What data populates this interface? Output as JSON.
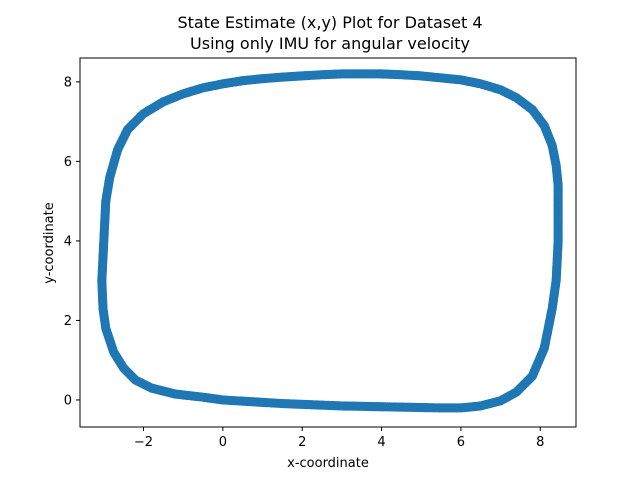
{
  "chart_data": {
    "type": "scatter",
    "title_line1": "State Estimate (x,y) Plot for Dataset 4",
    "title_line2": "Using only IMU for angular velocity",
    "xlabel": "x-coordinate",
    "ylabel": "y-coordinate",
    "xlim": [
      -3.6,
      8.9
    ],
    "ylim": [
      -0.68,
      8.6
    ],
    "xticks": [
      -2,
      0,
      2,
      4,
      6,
      8
    ],
    "xtick_labels": [
      "−2",
      "0",
      "2",
      "4",
      "6",
      "8"
    ],
    "yticks": [
      0,
      2,
      4,
      6,
      8
    ],
    "ytick_labels": [
      "0",
      "2",
      "4",
      "6",
      "8"
    ],
    "grid": false,
    "color": "#1f77b4",
    "points": [
      [
        8.45,
        4.0
      ],
      [
        8.45,
        5.4
      ],
      [
        8.4,
        5.9
      ],
      [
        8.3,
        6.4
      ],
      [
        8.1,
        6.9
      ],
      [
        7.8,
        7.3
      ],
      [
        7.4,
        7.6
      ],
      [
        7.0,
        7.8
      ],
      [
        6.5,
        7.95
      ],
      [
        6.0,
        8.05
      ],
      [
        5.5,
        8.1
      ],
      [
        5.0,
        8.15
      ],
      [
        4.5,
        8.18
      ],
      [
        4.0,
        8.2
      ],
      [
        3.5,
        8.2
      ],
      [
        3.0,
        8.2
      ],
      [
        2.5,
        8.18
      ],
      [
        2.0,
        8.15
      ],
      [
        1.5,
        8.12
      ],
      [
        1.0,
        8.08
      ],
      [
        0.5,
        8.03
      ],
      [
        0.0,
        7.95
      ],
      [
        -0.5,
        7.85
      ],
      [
        -1.0,
        7.7
      ],
      [
        -1.5,
        7.5
      ],
      [
        -2.0,
        7.2
      ],
      [
        -2.4,
        6.8
      ],
      [
        -2.65,
        6.3
      ],
      [
        -2.85,
        5.6
      ],
      [
        -2.95,
        5.0
      ],
      [
        -3.0,
        4.0
      ],
      [
        -3.05,
        3.0
      ],
      [
        -3.02,
        2.3
      ],
      [
        -2.95,
        1.8
      ],
      [
        -2.75,
        1.2
      ],
      [
        -2.5,
        0.8
      ],
      [
        -2.2,
        0.5
      ],
      [
        -1.8,
        0.3
      ],
      [
        -1.2,
        0.15
      ],
      [
        -0.5,
        0.07
      ],
      [
        0.0,
        0.0
      ],
      [
        0.5,
        -0.03
      ],
      [
        1.0,
        -0.06
      ],
      [
        1.5,
        -0.09
      ],
      [
        2.0,
        -0.11
      ],
      [
        2.5,
        -0.13
      ],
      [
        3.0,
        -0.15
      ],
      [
        3.5,
        -0.16
      ],
      [
        4.0,
        -0.17
      ],
      [
        4.5,
        -0.18
      ],
      [
        5.0,
        -0.19
      ],
      [
        5.5,
        -0.2
      ],
      [
        6.0,
        -0.2
      ],
      [
        6.5,
        -0.15
      ],
      [
        7.0,
        -0.02
      ],
      [
        7.4,
        0.2
      ],
      [
        7.8,
        0.6
      ],
      [
        8.1,
        1.3
      ],
      [
        8.3,
        2.3
      ],
      [
        8.4,
        3.0
      ],
      [
        8.45,
        4.0
      ]
    ]
  }
}
